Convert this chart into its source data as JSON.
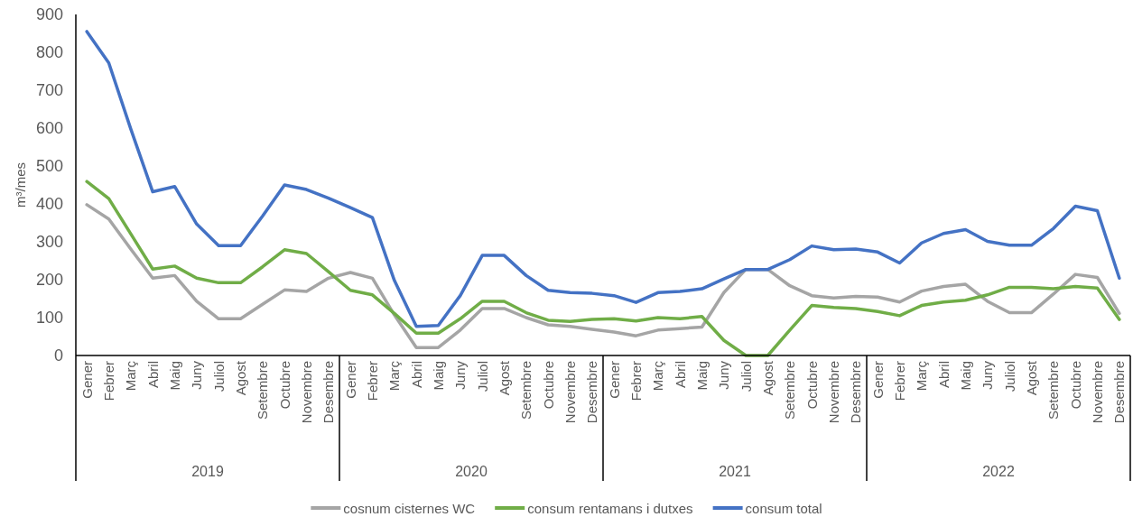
{
  "chart_data": {
    "type": "line",
    "ylabel": "m³/mes",
    "categories": [
      "Gener",
      "Febrer",
      "Març",
      "Abril",
      "Maig",
      "Juny",
      "Juliol",
      "Agost",
      "Setembre",
      "Octubre",
      "Novembre",
      "Desembre",
      "Gener",
      "Febrer",
      "Març",
      "Abril",
      "Maig",
      "Juny",
      "Juliol",
      "Agost",
      "Setembre",
      "Octubre",
      "Novembre",
      "Desembre",
      "Gener",
      "Febrer",
      "Març",
      "Abril",
      "Maig",
      "Juny",
      "Juliol",
      "Agost",
      "Setembre",
      "Octubre",
      "Novembre",
      "Desembre",
      "Gener",
      "Febrer",
      "Març",
      "Abril",
      "Maig",
      "Juny",
      "Juliol",
      "Agost",
      "Setembre",
      "Octubre",
      "Novembre",
      "Desembre"
    ],
    "annotations": [
      "2019",
      "2020",
      "2021",
      "2022"
    ],
    "series": [
      {
        "name": "cosnum cisternes WC",
        "color": "#a5a5a5",
        "values": [
          398,
          360,
          281,
          204,
          211,
          143,
          97,
          97,
          135,
          173,
          169,
          204,
          219,
          204,
          107,
          21,
          21,
          67,
          124,
          124,
          100,
          81,
          77,
          69,
          62,
          52,
          67,
          71,
          75,
          166,
          227,
          227,
          184,
          158,
          152,
          156,
          154,
          141,
          170,
          182,
          188,
          143,
          113,
          113,
          162,
          214,
          206,
          111
        ]
      },
      {
        "name": "consum rentamans i dutxes",
        "color": "#70ad47",
        "values": [
          459,
          414,
          321,
          228,
          236,
          204,
          192,
          192,
          234,
          279,
          269,
          221,
          172,
          160,
          111,
          59,
          59,
          97,
          143,
          143,
          113,
          93,
          90,
          95,
          97,
          91,
          100,
          97,
          103,
          40,
          0,
          0,
          67,
          132,
          127,
          124,
          116,
          105,
          132,
          141,
          146,
          160,
          180,
          180,
          176,
          182,
          178,
          95
        ]
      },
      {
        "name": "consum total",
        "color": "#4472c4",
        "values": [
          855,
          772,
          598,
          432,
          446,
          347,
          290,
          290,
          368,
          450,
          438,
          415,
          390,
          364,
          198,
          77,
          79,
          158,
          264,
          264,
          211,
          172,
          166,
          164,
          158,
          140,
          166,
          169,
          176,
          202,
          227,
          227,
          253,
          289,
          279,
          281,
          273,
          244,
          297,
          322,
          332,
          301,
          291,
          291,
          335,
          394,
          382,
          204
        ]
      }
    ],
    "ylim": [
      0,
      900
    ],
    "yticks": [
      0,
      100,
      200,
      300,
      400,
      500,
      600,
      700,
      800,
      900
    ],
    "legend": "bottom"
  }
}
